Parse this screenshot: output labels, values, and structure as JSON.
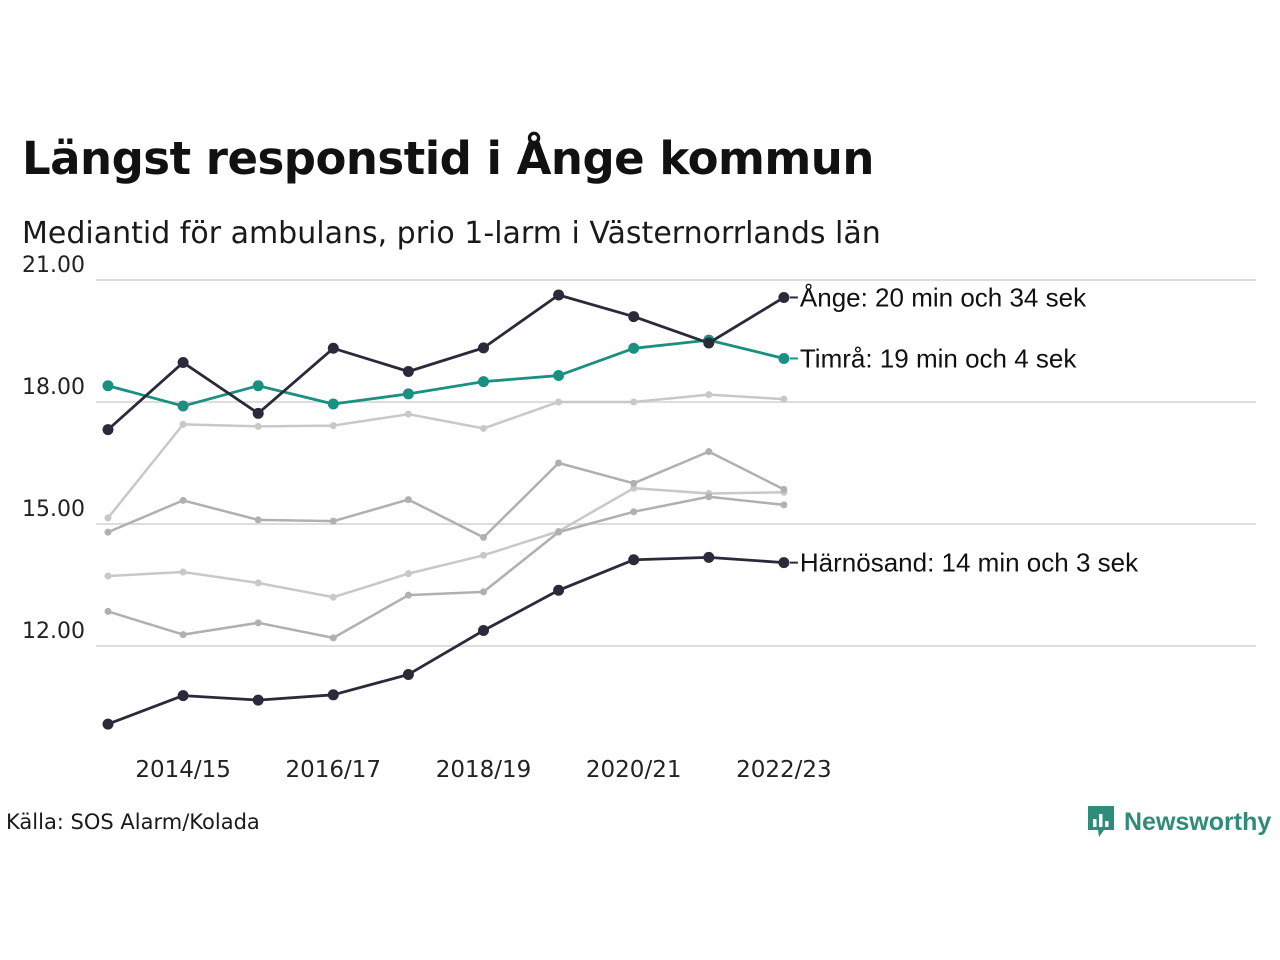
{
  "title": "Längst responstid i Ånge kommun",
  "subtitle": "Mediantid för ambulans, prio 1-larm i Västernorrlands län",
  "source": "Källa: SOS Alarm/Kolada",
  "brand": "Newsworthy",
  "colors": {
    "dark": "#2b2a3a",
    "teal": "#1a9080",
    "grey_light": "#c8c8c8",
    "grey_mid": "#b0b0b0",
    "grid": "#dddddd",
    "brand": "#2f8b7a"
  },
  "chart_data": {
    "type": "line",
    "x": [
      "2013/14",
      "2014/15",
      "2015/16",
      "2016/17",
      "2017/18",
      "2018/19",
      "2019/20",
      "2020/21",
      "2021/22",
      "2022/23"
    ],
    "x_tick_labels": [
      "2014/15",
      "2016/17",
      "2018/19",
      "2020/21",
      "2022/23"
    ],
    "y_ticks": [
      12,
      15,
      18,
      21
    ],
    "y_tick_labels": [
      "12.00",
      "15.00",
      "18.00",
      "21.00"
    ],
    "ylim": [
      10,
      21
    ],
    "grid": true,
    "series": [
      {
        "values": [
          15.15,
          17.45,
          17.4,
          17.42,
          17.7,
          17.35,
          18.0,
          18.0,
          18.18,
          18.07
        ],
        "style": "grey_light"
      },
      {
        "values": [
          13.72,
          13.82,
          13.55,
          13.2,
          13.78,
          14.23,
          14.82,
          15.88,
          15.75,
          15.78
        ],
        "style": "grey_light"
      },
      {
        "values": [
          14.8,
          15.58,
          15.1,
          15.07,
          15.6,
          14.67,
          16.5,
          16.0,
          16.78,
          15.85
        ],
        "style": "grey_mid"
      },
      {
        "values": [
          12.85,
          12.28,
          12.57,
          12.2,
          13.25,
          13.33,
          14.8,
          15.3,
          15.67,
          15.47
        ],
        "style": "grey_mid"
      },
      {
        "name": "Härnösand",
        "label": "Härnösand: 14 min och 3 sek",
        "values": [
          10.08,
          10.78,
          10.67,
          10.8,
          11.3,
          12.38,
          13.37,
          14.12,
          14.18,
          14.05
        ],
        "style": "dark"
      },
      {
        "name": "Timrå",
        "label": "Timrå: 19 min och 4 sek",
        "values": [
          18.4,
          17.9,
          18.4,
          17.95,
          18.2,
          18.5,
          18.65,
          19.32,
          19.52,
          19.07
        ],
        "style": "teal"
      },
      {
        "name": "Ånge",
        "label": "Ånge: 20 min och 34 sek",
        "values": [
          17.32,
          18.97,
          17.72,
          19.32,
          18.75,
          19.33,
          20.63,
          20.1,
          19.45,
          20.57
        ],
        "style": "dark"
      }
    ]
  }
}
